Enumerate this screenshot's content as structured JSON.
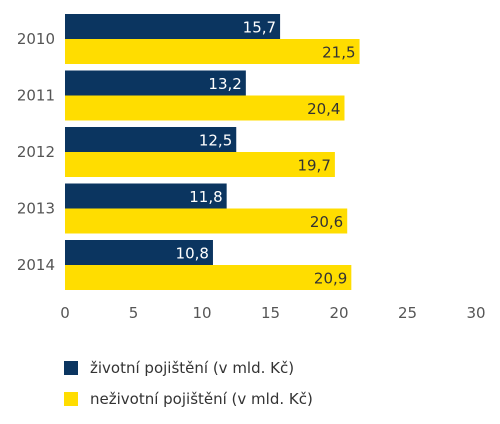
{
  "chart_data": {
    "type": "bar",
    "orientation": "horizontal",
    "categories": [
      "2010",
      "2011",
      "2012",
      "2013",
      "2014"
    ],
    "series": [
      {
        "name": "životní pojištění (v mld. Kč)",
        "values": [
          15.7,
          13.2,
          12.5,
          11.8,
          10.8
        ],
        "labels": [
          "15,7",
          "13,2",
          "12,5",
          "11,8",
          "10,8"
        ],
        "color": "#0b3560"
      },
      {
        "name": "neživotní pojištění (v mld. Kč)",
        "values": [
          21.5,
          20.4,
          19.7,
          20.6,
          20.9
        ],
        "labels": [
          "21,5",
          "20,4",
          "19,7",
          "20,6",
          "20,9"
        ],
        "color": "#ffdd00"
      }
    ],
    "xlim": [
      0,
      30
    ],
    "xticks": [
      0,
      5,
      10,
      15,
      20,
      25,
      30
    ],
    "grid": false,
    "legend_position": "bottom-left"
  },
  "colors": {
    "axis_text": "#555555",
    "value_label_dark_bar": "#ffffff",
    "value_label_light_bar": "#333333"
  }
}
